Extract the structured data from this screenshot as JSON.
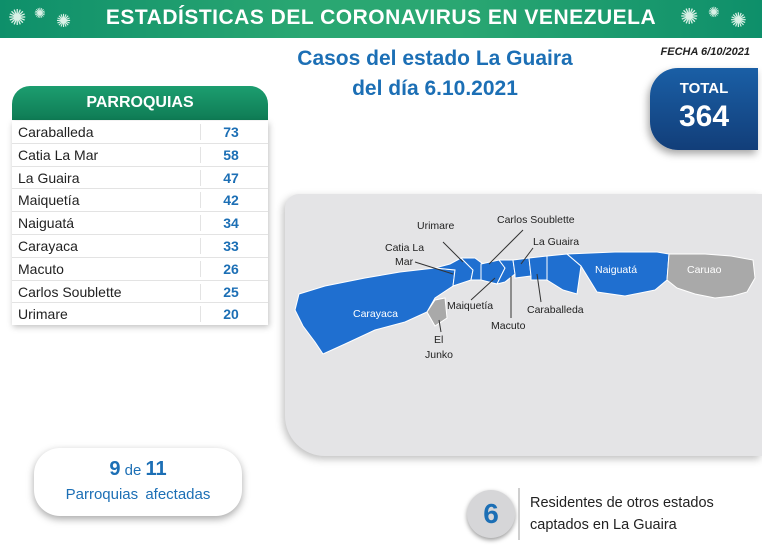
{
  "header": {
    "title": "ESTADÍSTICAS DEL CORONAVIRUS EN VENEZUELA"
  },
  "subtitle": {
    "line1": "Casos del estado La Guaira",
    "line2": "del día 6.10.2021"
  },
  "fecha": "FECHA 6/10/2021",
  "total": {
    "label": "TOTAL",
    "value": "364"
  },
  "parroquias": {
    "header": "PARROQUIAS",
    "rows": [
      {
        "name": "Caraballeda",
        "value": "73"
      },
      {
        "name": "Catia La Mar",
        "value": "58"
      },
      {
        "name": "La Guaira",
        "value": "47"
      },
      {
        "name": "Maiquetía",
        "value": "42"
      },
      {
        "name": "Naiguatá",
        "value": "34"
      },
      {
        "name": "Carayaca",
        "value": "33"
      },
      {
        "name": "Macuto",
        "value": "26"
      },
      {
        "name": "Carlos Soublette",
        "value": "25"
      },
      {
        "name": "Urimare",
        "value": "20"
      }
    ]
  },
  "map": {
    "labels": {
      "urimare": "Urimare",
      "carlos_soublette": "Carlos Soublette",
      "catia_la_mar_1": "Catia La",
      "catia_la_mar_2": "Mar",
      "la_guaira": "La Guaira",
      "naiguata": "Naiguatá",
      "caruao": "Caruao",
      "carayaca": "Carayaca",
      "maiquetia": "Maiquetía",
      "caraballeda": "Caraballeda",
      "macuto": "Macuto",
      "el_junko_1": "El",
      "el_junko_2": "Junko"
    },
    "colors": {
      "affected": "#1f6fd0",
      "unaffected": "#a9a9a9"
    }
  },
  "afectadas": {
    "count": "9",
    "de": "de",
    "total": "11",
    "label": "Parroquias afectadas"
  },
  "residentes": {
    "value": "6",
    "line1": "Residentes de otros estados",
    "line2": "captados en La Guaira"
  },
  "colors": {
    "banner": "#2aa772",
    "accent_blue": "#1c6fb5",
    "total_box": "#1a5fa6"
  }
}
